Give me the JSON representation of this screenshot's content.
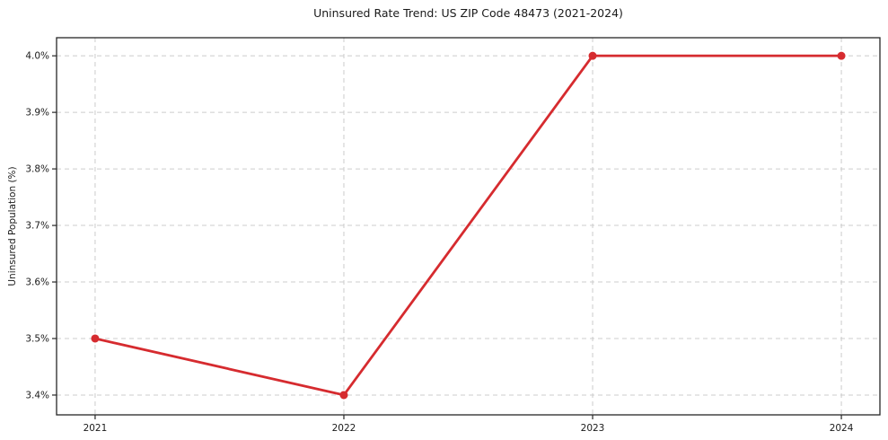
{
  "page": {
    "background": "#ffffff"
  },
  "chart_data": {
    "type": "line",
    "title": "Uninsured Rate Trend: US ZIP Code 48473 (2021-2024)",
    "xlabel": "",
    "ylabel": "Uninsured Population (%)",
    "x": [
      2021,
      2022,
      2023,
      2024
    ],
    "x_tick_labels": [
      "2021",
      "2022",
      "2023",
      "2024"
    ],
    "series": [
      {
        "name": "Uninsured rate",
        "values": [
          3.5,
          3.4,
          4.0,
          4.0
        ],
        "color": "#d62b2f",
        "marker": "circle"
      }
    ],
    "y_ticks": [
      3.4,
      3.5,
      3.6,
      3.7,
      3.8,
      3.9,
      4.0
    ],
    "y_tick_labels": [
      "3.4%",
      "3.5%",
      "3.6%",
      "3.7%",
      "3.8%",
      "3.9%",
      "4.0%"
    ],
    "xlim": [
      2020.845,
      2024.155
    ],
    "ylim": [
      3.365,
      4.032
    ],
    "grid": true,
    "grid_style": "dashed",
    "grid_color": "#cccccc",
    "axis_color": "#262626",
    "legend": false
  }
}
